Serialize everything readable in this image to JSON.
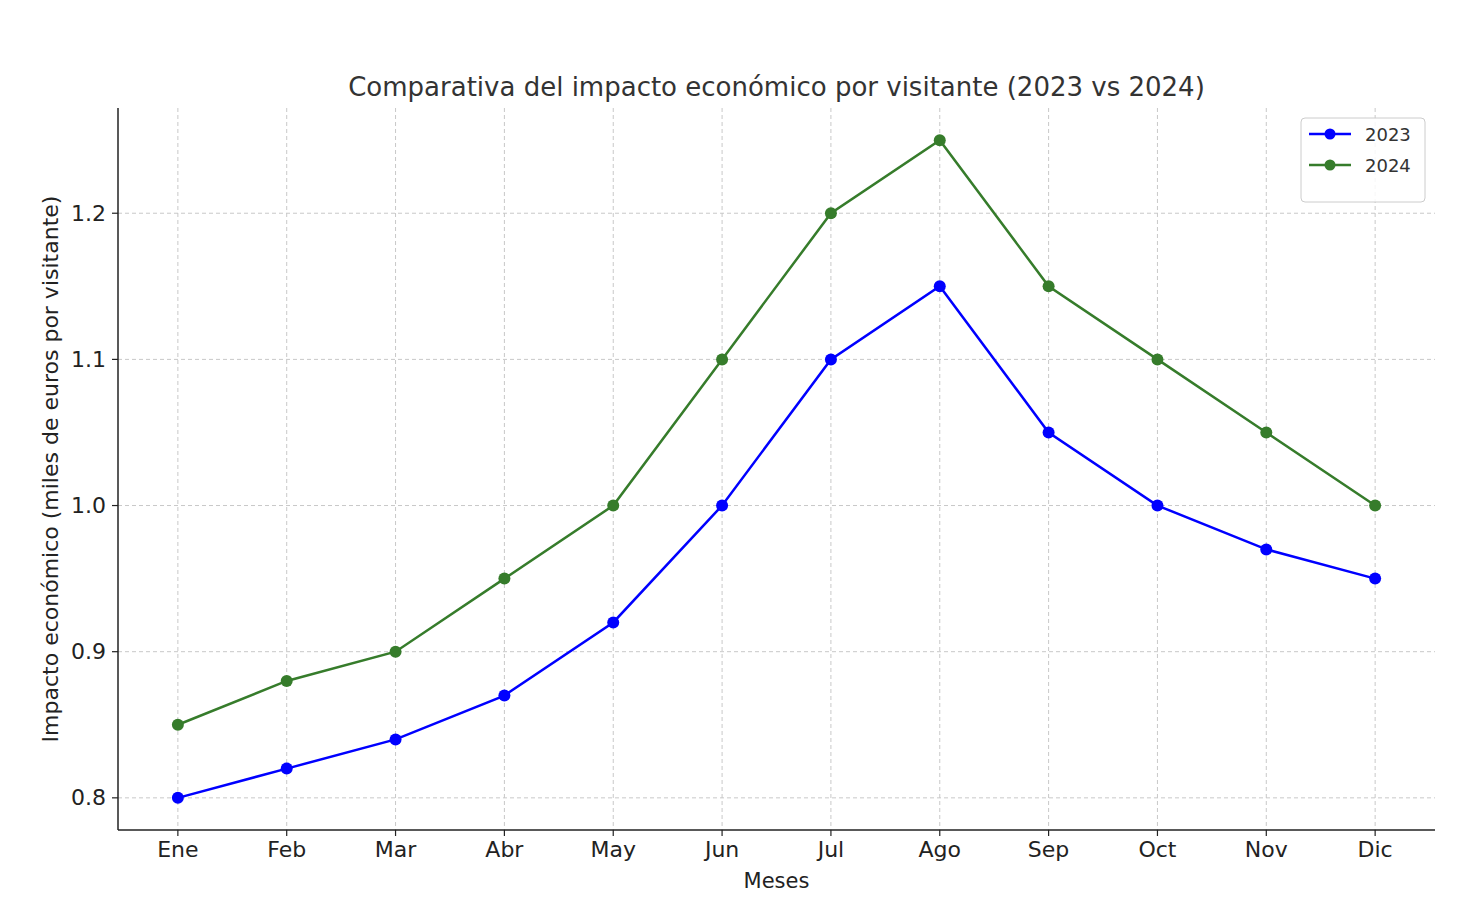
{
  "chart_data": {
    "type": "line",
    "title": "Comparativa del impacto económico por visitante (2023 vs 2024)",
    "x_label": "Meses",
    "y_label": "Impacto económico (miles de euros por visitante)",
    "categories": [
      "Ene",
      "Feb",
      "Mar",
      "Abr",
      "May",
      "Jun",
      "Jul",
      "Ago",
      "Sep",
      "Oct",
      "Nov",
      "Dic"
    ],
    "series": [
      {
        "name": "2023",
        "color": "#0000ff",
        "marker": "circle",
        "line_style": "solid",
        "values": [
          0.8,
          0.82,
          0.84,
          0.87,
          0.92,
          1.0,
          1.1,
          1.15,
          1.05,
          1.0,
          0.97,
          0.95
        ]
      },
      {
        "name": "2024",
        "color": "#367c2b",
        "marker": "circle",
        "line_style": "solid",
        "values": [
          0.85,
          0.88,
          0.9,
          0.95,
          1.0,
          1.1,
          1.2,
          1.25,
          1.15,
          1.1,
          1.05,
          1.0
        ]
      }
    ],
    "ylim": [
      0.778,
      1.272
    ],
    "yticks": [
      0.8,
      0.9,
      {
        "value": 1,
        "label": "1.0"
      },
      1.1,
      1.2
    ],
    "grid": true,
    "legend": "upper right"
  }
}
